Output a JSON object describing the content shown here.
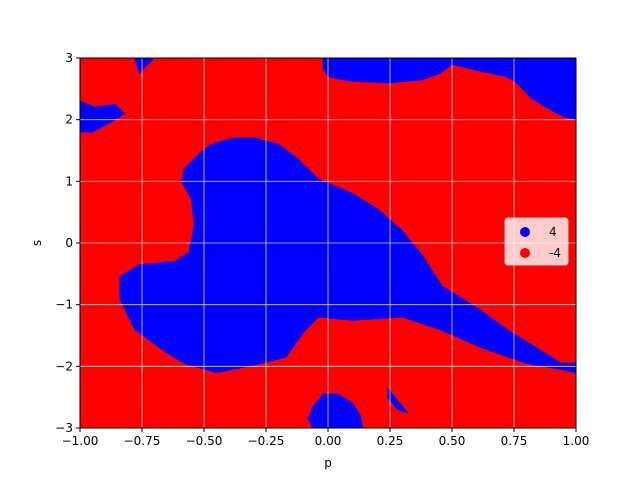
{
  "chart_data": {
    "type": "scatter",
    "xlabel": "p",
    "ylabel": "s",
    "xlim": [
      -1.0,
      1.0
    ],
    "ylim": [
      -3,
      3
    ],
    "grid": true,
    "legend_placement": "center-right",
    "x_ticks": [
      "−1.00",
      "−0.75",
      "−0.50",
      "−0.25",
      "0.00",
      "0.25",
      "0.50",
      "0.75",
      "1.00"
    ],
    "x_tick_values": [
      -1.0,
      -0.75,
      -0.5,
      -0.25,
      0.0,
      0.25,
      0.5,
      0.75,
      1.0
    ],
    "y_ticks": [
      "−3",
      "−2",
      "−1",
      "0",
      "1",
      "2",
      "3"
    ],
    "y_tick_values": [
      -3,
      -2,
      -1,
      0,
      1,
      2,
      3
    ],
    "series": [
      {
        "name": "4",
        "color": "#0000ff",
        "regions": [
          [
            [
              -0.38,
              1.71
            ],
            [
              -0.3,
              1.71
            ],
            [
              -0.2,
              1.6
            ],
            [
              -0.12,
              1.36
            ],
            [
              -0.04,
              1.04
            ],
            [
              0.1,
              0.8
            ],
            [
              0.2,
              0.55
            ],
            [
              0.3,
              0.2
            ],
            [
              0.38,
              -0.2
            ],
            [
              0.46,
              -0.7
            ],
            [
              0.6,
              -1.05
            ],
            [
              0.72,
              -1.4
            ],
            [
              0.82,
              -1.65
            ],
            [
              0.94,
              -1.95
            ],
            [
              1.0,
              -1.95
            ],
            [
              1.0,
              -2.1
            ],
            [
              0.94,
              -2.05
            ],
            [
              0.8,
              -1.95
            ],
            [
              0.62,
              -1.7
            ],
            [
              0.45,
              -1.4
            ],
            [
              0.3,
              -1.2
            ],
            [
              0.1,
              -1.25
            ],
            [
              -0.04,
              -1.2
            ],
            [
              -0.1,
              -1.45
            ],
            [
              -0.17,
              -1.85
            ],
            [
              -0.32,
              -2.0
            ],
            [
              -0.45,
              -2.1
            ],
            [
              -0.58,
              -1.95
            ],
            [
              -0.66,
              -1.75
            ],
            [
              -0.78,
              -1.4
            ],
            [
              -0.84,
              -0.9
            ],
            [
              -0.84,
              -0.55
            ],
            [
              -0.76,
              -0.35
            ],
            [
              -0.62,
              -0.3
            ],
            [
              -0.56,
              -0.15
            ],
            [
              -0.54,
              0.3
            ],
            [
              -0.55,
              0.7
            ],
            [
              -0.59,
              1.0
            ],
            [
              -0.58,
              1.2
            ],
            [
              -0.52,
              1.45
            ],
            [
              -0.47,
              1.6
            ]
          ],
          [
            [
              -0.02,
              -2.45
            ],
            [
              0.04,
              -2.45
            ],
            [
              0.1,
              -2.6
            ],
            [
              0.13,
              -2.8
            ],
            [
              0.14,
              -3.0
            ],
            [
              -0.06,
              -3.0
            ],
            [
              -0.08,
              -2.85
            ],
            [
              -0.06,
              -2.65
            ]
          ],
          [
            [
              0.24,
              -2.35
            ],
            [
              0.28,
              -2.55
            ],
            [
              0.32,
              -2.75
            ],
            [
              0.28,
              -2.7
            ],
            [
              0.24,
              -2.5
            ]
          ],
          [
            [
              -1.0,
              2.3
            ],
            [
              -0.94,
              2.2
            ],
            [
              -0.86,
              2.25
            ],
            [
              -0.82,
              2.1
            ],
            [
              -0.86,
              2.0
            ],
            [
              -0.95,
              1.8
            ],
            [
              -1.0,
              1.8
            ]
          ],
          [
            [
              -0.78,
              3.0
            ],
            [
              -0.7,
              3.0
            ],
            [
              -0.74,
              2.85
            ],
            [
              -0.76,
              2.75
            ]
          ],
          [
            [
              -0.02,
              3.0
            ],
            [
              1.0,
              3.0
            ],
            [
              1.0,
              2.0
            ],
            [
              0.95,
              2.05
            ],
            [
              0.88,
              2.2
            ],
            [
              0.82,
              2.35
            ],
            [
              0.76,
              2.6
            ],
            [
              0.72,
              2.7
            ],
            [
              0.66,
              2.75
            ],
            [
              0.58,
              2.82
            ],
            [
              0.5,
              2.9
            ],
            [
              0.45,
              2.75
            ],
            [
              0.38,
              2.65
            ],
            [
              0.25,
              2.6
            ],
            [
              0.1,
              2.62
            ],
            [
              0.0,
              2.7
            ],
            [
              -0.02,
              2.85
            ]
          ]
        ]
      },
      {
        "name": "-4",
        "color": "#ff0000",
        "regions": [
          [
            [
              -1.0,
              -3.0
            ],
            [
              1.0,
              -3.0
            ],
            [
              1.0,
              3.0
            ],
            [
              -1.0,
              3.0
            ]
          ]
        ]
      }
    ]
  }
}
